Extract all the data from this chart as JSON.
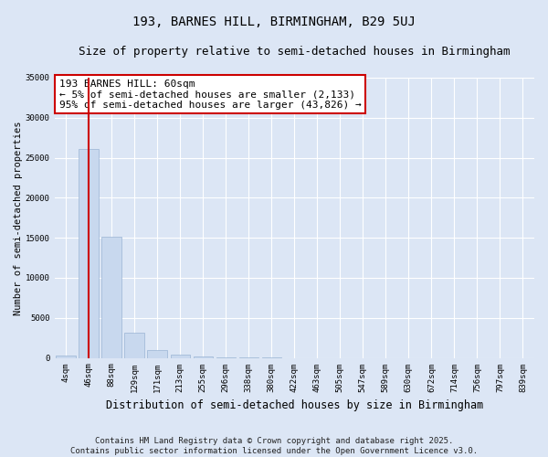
{
  "title": "193, BARNES HILL, BIRMINGHAM, B29 5UJ",
  "subtitle": "Size of property relative to semi-detached houses in Birmingham",
  "xlabel": "Distribution of semi-detached houses by size in Birmingham",
  "ylabel": "Number of semi-detached properties",
  "bar_color": "#c8d8ee",
  "bar_edge_color": "#9ab4d4",
  "background_color": "#dce6f5",
  "fig_background_color": "#dce6f5",
  "grid_color": "#ffffff",
  "categories": [
    "4sqm",
    "46sqm",
    "88sqm",
    "129sqm",
    "171sqm",
    "213sqm",
    "255sqm",
    "296sqm",
    "338sqm",
    "380sqm",
    "422sqm",
    "463sqm",
    "505sqm",
    "547sqm",
    "589sqm",
    "630sqm",
    "672sqm",
    "714sqm",
    "756sqm",
    "797sqm",
    "839sqm"
  ],
  "values": [
    300,
    26100,
    15100,
    3200,
    1000,
    460,
    180,
    75,
    30,
    12,
    6,
    4,
    2,
    2,
    1,
    1,
    1,
    1,
    1,
    1,
    1
  ],
  "ylim": [
    0,
    35000
  ],
  "yticks": [
    0,
    5000,
    10000,
    15000,
    20000,
    25000,
    30000,
    35000
  ],
  "property_bar_index": 1,
  "red_line_color": "#cc0000",
  "annotation_title": "193 BARNES HILL: 60sqm",
  "annotation_line1": "← 5% of semi-detached houses are smaller (2,133)",
  "annotation_line2": "95% of semi-detached houses are larger (43,826) →",
  "annotation_box_color": "#ffffff",
  "annotation_border_color": "#cc0000",
  "footer_line1": "Contains HM Land Registry data © Crown copyright and database right 2025.",
  "footer_line2": "Contains public sector information licensed under the Open Government Licence v3.0.",
  "title_fontsize": 10,
  "subtitle_fontsize": 9,
  "ylabel_fontsize": 7.5,
  "xlabel_fontsize": 8.5,
  "tick_fontsize": 6.5,
  "annotation_fontsize": 8,
  "footer_fontsize": 6.5
}
